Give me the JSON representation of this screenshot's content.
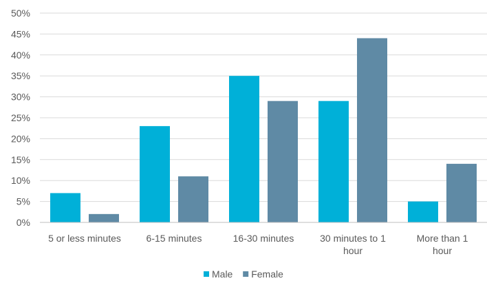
{
  "chart_data": {
    "type": "bar",
    "categories": [
      [
        "5 or less minutes"
      ],
      [
        "6-15 minutes"
      ],
      [
        "16-30 minutes"
      ],
      [
        "30 minutes to 1",
        "hour"
      ],
      [
        "More than 1",
        "hour"
      ]
    ],
    "series": [
      {
        "name": "Male",
        "color": "#00b0d8",
        "values": [
          7,
          23,
          35,
          29,
          5
        ]
      },
      {
        "name": "Female",
        "color": "#5f8aa5",
        "values": [
          2,
          11,
          29,
          44,
          14
        ]
      }
    ],
    "y_ticks": [
      "0%",
      "5%",
      "10%",
      "15%",
      "20%",
      "25%",
      "30%",
      "35%",
      "40%",
      "45%",
      "50%"
    ],
    "ylim": [
      0,
      50
    ],
    "grid": true,
    "legend_position": "bottom"
  }
}
